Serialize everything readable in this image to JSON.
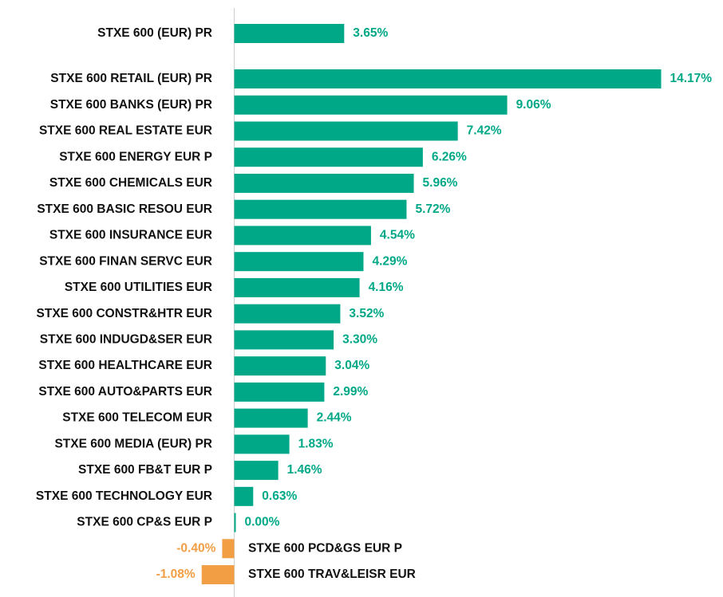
{
  "chart_data": {
    "type": "bar",
    "orientation": "horizontal",
    "categories": [
      "STXE 600 (EUR) PR",
      "STXE 600 RETAIL (EUR) PR",
      "STXE 600 BANKS (EUR) PR",
      "STXE 600 REAL ESTATE EUR",
      "STXE 600 ENERGY EUR P",
      "STXE 600 CHEMICALS EUR",
      "STXE 600 BASIC RESOU EUR",
      "STXE 600 INSURANCE EUR",
      "STXE 600 FINAN SERVC EUR",
      "STXE 600 UTILITIES EUR",
      "STXE 600 CONSTR&HTR EUR",
      "STXE 600 INDUGD&SER EUR",
      "STXE 600 HEALTHCARE EUR",
      "STXE 600 AUTO&PARTS EUR",
      "STXE 600 TELECOM EUR",
      "STXE 600 MEDIA (EUR) PR",
      "STXE 600 FB&T EUR P",
      "STXE 600 TECHNOLOGY EUR",
      "STXE 600 CP&S EUR P",
      "STXE 600 PCD&GS EUR P",
      "STXE 600 TRAV&LEISR EUR"
    ],
    "values": [
      3.65,
      14.17,
      9.06,
      7.42,
      6.26,
      5.96,
      5.72,
      4.54,
      4.29,
      4.16,
      3.52,
      3.3,
      3.04,
      2.99,
      2.44,
      1.83,
      1.46,
      0.63,
      0.0,
      -0.4,
      -1.08
    ],
    "value_labels": [
      "3.65%",
      "14.17%",
      "9.06%",
      "7.42%",
      "6.26%",
      "5.96%",
      "5.72%",
      "4.54%",
      "4.29%",
      "4.16%",
      "3.52%",
      "3.30%",
      "3.04%",
      "2.99%",
      "2.44%",
      "1.83%",
      "1.46%",
      "0.63%",
      "0.00%",
      "-0.40%",
      "-1.08%"
    ],
    "colors": {
      "positive": "#00a887",
      "negative": "#f29e45"
    }
  }
}
